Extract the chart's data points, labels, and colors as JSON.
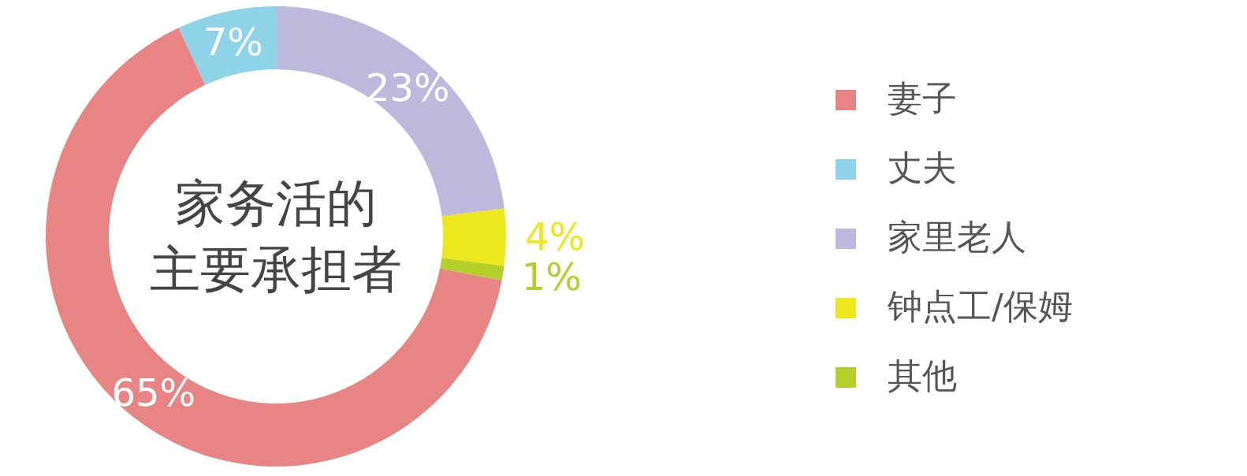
{
  "chart_data": {
    "type": "donut",
    "title": "家务活的主要承担者",
    "categories": [
      "妻子",
      "丈夫",
      "家里老人",
      "钟点工/保姆",
      "其他"
    ],
    "values": [
      65,
      7,
      23,
      4,
      1
    ],
    "colors": [
      "#e98484",
      "#8fd3e8",
      "#bdb9dd",
      "#ece81c",
      "#b5cf2a"
    ],
    "value_labels": [
      "65%",
      "7%",
      "23%",
      "4%",
      "1%"
    ],
    "legend": "right"
  }
}
